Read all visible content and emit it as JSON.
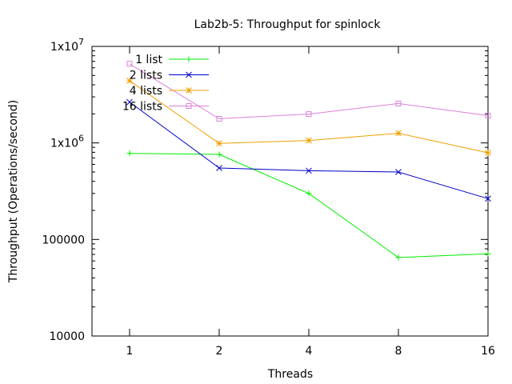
{
  "chart_data": {
    "type": "line",
    "title": "Lab2b-5: Throughput for spinlock",
    "xlabel": "Threads",
    "ylabel": "Throughput (Operations/second)",
    "x_scale": "log2",
    "y_scale": "log10",
    "categories": [
      "1",
      "2",
      "4",
      "8",
      "16"
    ],
    "x": [
      1,
      2,
      4,
      8,
      16
    ],
    "ylim": [
      10000,
      10000000
    ],
    "y_ticks": [
      {
        "value": 10000,
        "label": "10000",
        "kind": "plain"
      },
      {
        "value": 100000,
        "label": "100000",
        "kind": "plain"
      },
      {
        "value": 1000000,
        "label": "1x10",
        "exp": "6",
        "kind": "sci"
      },
      {
        "value": 10000000,
        "label": "1x10",
        "exp": "7",
        "kind": "sci"
      }
    ],
    "grid": false,
    "legend_position": "top-left",
    "series": [
      {
        "name": "1 list",
        "color": "#00ee00",
        "marker": "plus",
        "values": [
          780000,
          760000,
          300000,
          65000,
          71000
        ]
      },
      {
        "name": "2 lists",
        "color": "#0000cc",
        "marker": "cross",
        "values": [
          2650000,
          550000,
          515000,
          500000,
          265000
        ]
      },
      {
        "name": "4 lists",
        "color": "#f0a000",
        "marker": "star",
        "values": [
          4400000,
          990000,
          1060000,
          1260000,
          790000
        ]
      },
      {
        "name": "16 lists",
        "color": "#dd80dd",
        "marker": "square",
        "values": [
          6600000,
          1780000,
          1990000,
          2560000,
          1920000
        ]
      }
    ]
  }
}
